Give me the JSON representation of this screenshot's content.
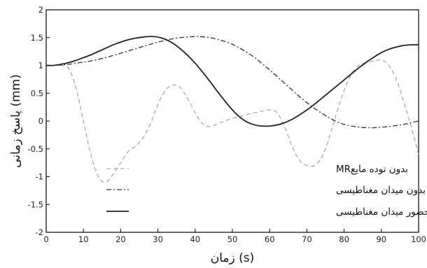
{
  "chart_data": {
    "type": "line",
    "title": "",
    "xlabel": "زمان (s)",
    "ylabel": "پاسخ زمانی (mm)",
    "xlim": [
      0,
      100
    ],
    "ylim": [
      -2,
      2
    ],
    "xticks": [
      0,
      10,
      20,
      30,
      40,
      50,
      60,
      70,
      80,
      90,
      100
    ],
    "yticks": [
      -2,
      -1.5,
      -1,
      -0.5,
      0,
      0.5,
      1,
      1.5,
      2
    ],
    "xtick_labels": [
      "0",
      "10",
      "20",
      "30",
      "40",
      "50",
      "60",
      "70",
      "80",
      "90",
      "100"
    ],
    "ytick_labels": [
      "-2",
      "-1.5",
      "-1",
      "-0.5",
      "0",
      "0.5",
      "1",
      "1.5",
      "2"
    ],
    "grid": false,
    "legend_position": "bottom-left",
    "series": [
      {
        "name": "بدون توده مایعMR",
        "style": "dashed-light",
        "color": "#9a9a9a",
        "x": [
          0,
          2,
          4,
          6,
          8,
          10,
          12,
          14,
          16,
          18,
          20,
          22,
          24,
          26,
          28,
          30,
          32,
          34,
          36,
          38,
          40,
          42,
          44,
          46,
          48,
          50,
          52,
          54,
          56,
          58,
          60,
          62,
          64,
          66,
          68,
          70,
          72,
          74,
          76,
          78,
          80,
          82,
          84,
          86,
          88,
          90,
          92,
          94,
          96,
          98,
          100
        ],
        "y": [
          1.0,
          1.0,
          1.0,
          0.95,
          0.6,
          0.0,
          -0.6,
          -1.0,
          -1.1,
          -0.95,
          -0.75,
          -0.55,
          -0.45,
          -0.3,
          -0.05,
          0.3,
          0.55,
          0.65,
          0.6,
          0.4,
          0.15,
          -0.05,
          -0.1,
          -0.05,
          0.0,
          0.05,
          0.08,
          0.12,
          0.15,
          0.18,
          0.2,
          0.15,
          -0.1,
          -0.45,
          -0.7,
          -0.8,
          -0.8,
          -0.65,
          -0.3,
          0.15,
          0.55,
          0.85,
          1.0,
          1.05,
          1.08,
          1.1,
          1.0,
          0.75,
          0.35,
          -0.1,
          -0.6
        ]
      },
      {
        "name": "با مایع بدون میدان مغناطیسی",
        "style": "dash-dot",
        "color": "#333333",
        "x": [
          0,
          2,
          4,
          6,
          8,
          10,
          12,
          14,
          16,
          18,
          20,
          22,
          24,
          26,
          28,
          30,
          32,
          34,
          36,
          38,
          40,
          42,
          44,
          46,
          48,
          50,
          52,
          54,
          56,
          58,
          60,
          62,
          64,
          66,
          68,
          70,
          72,
          74,
          76,
          78,
          80,
          82,
          84,
          86,
          88,
          90,
          92,
          94,
          96,
          98,
          100
        ],
        "y": [
          1.0,
          1.0,
          1.01,
          1.02,
          1.04,
          1.06,
          1.08,
          1.11,
          1.14,
          1.18,
          1.22,
          1.26,
          1.3,
          1.34,
          1.38,
          1.42,
          1.45,
          1.48,
          1.5,
          1.51,
          1.52,
          1.515,
          1.5,
          1.47,
          1.43,
          1.38,
          1.31,
          1.23,
          1.14,
          1.03,
          0.92,
          0.8,
          0.68,
          0.56,
          0.44,
          0.33,
          0.23,
          0.14,
          0.06,
          -0.01,
          -0.06,
          -0.09,
          -0.11,
          -0.12,
          -0.12,
          -0.11,
          -0.1,
          -0.08,
          -0.06,
          -0.03,
          0.0
        ]
      },
      {
        "name": "با مایع در حضور میدان مغناطیسی",
        "style": "solid",
        "color": "#222222",
        "x": [
          0,
          2,
          4,
          6,
          8,
          10,
          12,
          14,
          16,
          18,
          20,
          22,
          24,
          26,
          28,
          30,
          32,
          34,
          36,
          38,
          40,
          42,
          44,
          46,
          48,
          50,
          52,
          54,
          56,
          58,
          60,
          62,
          64,
          66,
          68,
          70,
          72,
          74,
          76,
          78,
          80,
          82,
          84,
          86,
          88,
          90,
          92,
          94,
          96,
          98,
          100
        ],
        "y": [
          1.0,
          1.0,
          1.02,
          1.05,
          1.09,
          1.14,
          1.19,
          1.25,
          1.31,
          1.37,
          1.42,
          1.46,
          1.49,
          1.51,
          1.52,
          1.51,
          1.47,
          1.4,
          1.3,
          1.18,
          1.04,
          0.88,
          0.71,
          0.53,
          0.36,
          0.2,
          0.07,
          -0.02,
          -0.07,
          -0.09,
          -0.09,
          -0.07,
          -0.03,
          0.03,
          0.11,
          0.2,
          0.3,
          0.41,
          0.52,
          0.63,
          0.74,
          0.85,
          0.96,
          1.06,
          1.15,
          1.23,
          1.29,
          1.33,
          1.36,
          1.37,
          1.37
        ]
      }
    ]
  }
}
